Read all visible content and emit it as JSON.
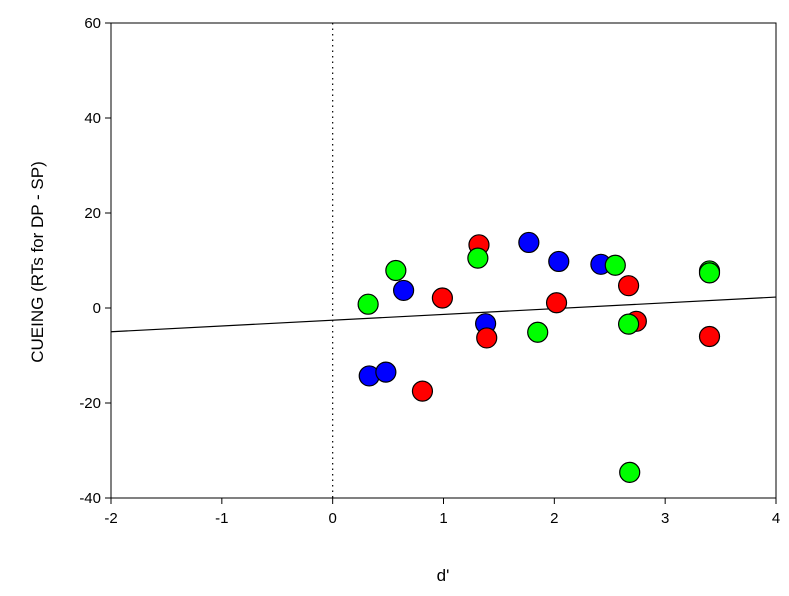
{
  "chart_data": {
    "type": "scatter",
    "title": "",
    "xlabel": "d'",
    "ylabel": "CUEING (RTs for DP - SP)",
    "xlim": [
      -2,
      4
    ],
    "ylim": [
      -40,
      60
    ],
    "xticks": [
      -2,
      -1,
      0,
      1,
      2,
      3,
      4
    ],
    "yticks": [
      -40,
      -20,
      0,
      20,
      40,
      60
    ],
    "grid": false,
    "reference_line": {
      "type": "vertical",
      "x": 0,
      "style": "dotted"
    },
    "fit_line": {
      "x": [
        -2,
        4
      ],
      "y": [
        -5.0,
        2.3
      ]
    },
    "series": [
      {
        "color": "#0000ff",
        "points": [
          {
            "x": 0.33,
            "y": -14.3
          },
          {
            "x": 0.48,
            "y": -13.5
          },
          {
            "x": 0.64,
            "y": 3.7
          },
          {
            "x": 1.38,
            "y": -3.3
          },
          {
            "x": 1.77,
            "y": 13.8
          },
          {
            "x": 2.04,
            "y": 9.8
          },
          {
            "x": 2.42,
            "y": 9.2
          }
        ]
      },
      {
        "color": "#ff0000",
        "points": [
          {
            "x": 0.81,
            "y": -17.5
          },
          {
            "x": 0.99,
            "y": 2.1
          },
          {
            "x": 1.32,
            "y": 13.3
          },
          {
            "x": 1.39,
            "y": -6.3
          },
          {
            "x": 2.02,
            "y": 1.1
          },
          {
            "x": 2.67,
            "y": 4.7
          },
          {
            "x": 2.74,
            "y": -2.8
          },
          {
            "x": 3.4,
            "y": -6.0
          }
        ]
      },
      {
        "color": "#00ff00",
        "points": [
          {
            "x": 0.32,
            "y": 0.8
          },
          {
            "x": 0.57,
            "y": 7.9
          },
          {
            "x": 1.31,
            "y": 10.5
          },
          {
            "x": 1.85,
            "y": -5.1
          },
          {
            "x": 2.55,
            "y": 9.0
          },
          {
            "x": 2.67,
            "y": -3.4
          },
          {
            "x": 2.68,
            "y": -34.6
          },
          {
            "x": 3.4,
            "y": 7.8
          },
          {
            "x": 3.4,
            "y": 7.4
          }
        ]
      }
    ]
  }
}
